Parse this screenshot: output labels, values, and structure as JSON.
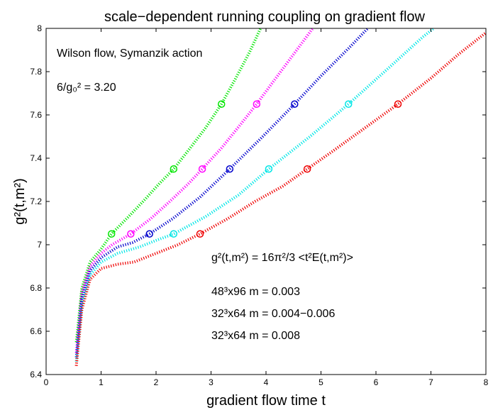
{
  "chart_data": {
    "type": "line",
    "title": "scale−dependent running coupling on gradient flow",
    "xlabel": "gradient flow time t",
    "ylabel": "g²(t,m²)",
    "xlim": [
      0,
      8
    ],
    "ylim": [
      6.4,
      8.0
    ],
    "xticks": [
      "0",
      "1",
      "2",
      "3",
      "4",
      "5",
      "6",
      "7",
      "8"
    ],
    "yticks": [
      "6.4",
      "6.6",
      "6.8",
      "7",
      "7.2",
      "7.4",
      "7.6",
      "7.8",
      "8"
    ],
    "grid": false,
    "annotations": {
      "method": "Wilson flow, Symanzik action",
      "coupling": "6/g₀² = 3.20",
      "formula": "g²(t,m²) = 16π²/3 <t²E(t,m²)>",
      "ens1": "48³x96 m = 0.003",
      "ens2": "32³x64 m = 0.004−0.006",
      "ens3": "32³x64 m = 0.008"
    },
    "series": [
      {
        "color": "#00e600",
        "points": [
          [
            0.55,
            6.55
          ],
          [
            0.65,
            6.8
          ],
          [
            0.8,
            6.92
          ],
          [
            1.0,
            6.98
          ],
          [
            1.19,
            7.05
          ],
          [
            1.5,
            7.13
          ],
          [
            1.8,
            7.21
          ],
          [
            2.05,
            7.28
          ],
          [
            2.32,
            7.35
          ],
          [
            2.6,
            7.44
          ],
          [
            2.9,
            7.54
          ],
          [
            3.19,
            7.65
          ],
          [
            3.45,
            7.77
          ],
          [
            3.7,
            7.89
          ],
          [
            3.9,
            8.0
          ]
        ],
        "markers": [
          [
            1.19,
            7.05
          ],
          [
            2.32,
            7.35
          ],
          [
            3.19,
            7.65
          ]
        ]
      },
      {
        "color": "#ff00ff",
        "points": [
          [
            0.55,
            6.5
          ],
          [
            0.65,
            6.78
          ],
          [
            0.8,
            6.9
          ],
          [
            1.0,
            6.96
          ],
          [
            1.2,
            7.0
          ],
          [
            1.54,
            7.05
          ],
          [
            1.9,
            7.12
          ],
          [
            2.25,
            7.2
          ],
          [
            2.58,
            7.28
          ],
          [
            2.84,
            7.35
          ],
          [
            3.2,
            7.45
          ],
          [
            3.55,
            7.56
          ],
          [
            3.83,
            7.65
          ],
          [
            4.15,
            7.76
          ],
          [
            4.5,
            7.88
          ],
          [
            4.85,
            8.0
          ]
        ],
        "markers": [
          [
            1.54,
            7.05
          ],
          [
            2.84,
            7.35
          ],
          [
            3.83,
            7.65
          ]
        ]
      },
      {
        "color": "#0000cc",
        "points": [
          [
            0.55,
            6.48
          ],
          [
            0.65,
            6.75
          ],
          [
            0.8,
            6.88
          ],
          [
            1.0,
            6.94
          ],
          [
            1.3,
            6.99
          ],
          [
            1.57,
            7.01
          ],
          [
            1.88,
            7.05
          ],
          [
            2.3,
            7.12
          ],
          [
            2.8,
            7.22
          ],
          [
            3.34,
            7.35
          ],
          [
            3.9,
            7.49
          ],
          [
            4.52,
            7.65
          ],
          [
            5.0,
            7.78
          ],
          [
            5.55,
            7.92
          ],
          [
            5.85,
            8.0
          ]
        ],
        "markers": [
          [
            1.88,
            7.05
          ],
          [
            3.34,
            7.35
          ],
          [
            4.52,
            7.65
          ]
        ]
      },
      {
        "color": "#00e6e6",
        "points": [
          [
            0.55,
            6.46
          ],
          [
            0.65,
            6.72
          ],
          [
            0.8,
            6.86
          ],
          [
            1.0,
            6.92
          ],
          [
            1.3,
            6.96
          ],
          [
            1.7,
            6.99
          ],
          [
            2.0,
            7.02
          ],
          [
            2.32,
            7.05
          ],
          [
            2.9,
            7.13
          ],
          [
            3.5,
            7.23
          ],
          [
            4.05,
            7.35
          ],
          [
            4.8,
            7.5
          ],
          [
            5.5,
            7.65
          ],
          [
            6.2,
            7.81
          ],
          [
            6.85,
            7.96
          ],
          [
            7.05,
            8.0
          ]
        ],
        "markers": [
          [
            2.32,
            7.05
          ],
          [
            4.05,
            7.35
          ],
          [
            5.5,
            7.65
          ]
        ]
      },
      {
        "color": "#ee0000",
        "points": [
          [
            0.55,
            6.44
          ],
          [
            0.65,
            6.7
          ],
          [
            0.8,
            6.84
          ],
          [
            1.0,
            6.89
          ],
          [
            1.3,
            6.91
          ],
          [
            1.6,
            6.92
          ],
          [
            2.0,
            6.96
          ],
          [
            2.4,
            7.0
          ],
          [
            2.8,
            7.05
          ],
          [
            3.3,
            7.12
          ],
          [
            3.8,
            7.2
          ],
          [
            4.3,
            7.27
          ],
          [
            4.75,
            7.35
          ],
          [
            5.2,
            7.43
          ],
          [
            5.8,
            7.54
          ],
          [
            6.4,
            7.65
          ],
          [
            7.0,
            7.77
          ],
          [
            7.5,
            7.88
          ],
          [
            8.0,
            7.98
          ]
        ],
        "markers": [
          [
            2.8,
            7.05
          ],
          [
            4.75,
            7.35
          ],
          [
            6.4,
            7.65
          ]
        ]
      }
    ]
  }
}
